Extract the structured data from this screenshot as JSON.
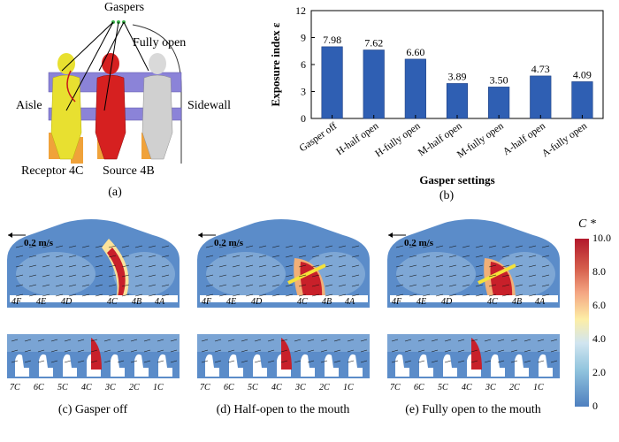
{
  "panel_a": {
    "labels": {
      "gaspers": "Gaspers",
      "fully_open": "Fully open",
      "aisle": "Aisle",
      "sidewall": "Sidewall",
      "receptor": "Receptor 4C",
      "source": "Source 4B"
    },
    "caption": "(a)"
  },
  "panel_b": {
    "caption": "(b)"
  },
  "chart_data": {
    "type": "bar",
    "title": "",
    "xlabel": "Gasper settings",
    "ylabel": "Exposure index ε",
    "ylim": [
      0,
      12
    ],
    "yticks": [
      0,
      3,
      6,
      9,
      12
    ],
    "categories": [
      "Gasper off",
      "H-half open",
      "H-fully open",
      "M-half open",
      "M-fully open",
      "A-half open",
      "A-fully open"
    ],
    "values": [
      7.98,
      7.62,
      6.6,
      3.89,
      3.5,
      4.73,
      4.09
    ],
    "value_labels": [
      "7.98",
      "7.62",
      "6.60",
      "3.89",
      "3.50",
      "4.73",
      "4.09"
    ],
    "bar_color": "#2f5fb3"
  },
  "panels_cfd": [
    {
      "speed": "0.2 m/s",
      "caption": "(c) Gasper off"
    },
    {
      "speed": "0.2 m/s",
      "caption": "(d) Half-open to the mouth"
    },
    {
      "speed": "0.2 m/s",
      "caption": "(e) Fully open to the mouth"
    }
  ],
  "seat_labels_top": [
    "4F",
    "4E",
    "4D",
    "4C",
    "4B",
    "4A"
  ],
  "seat_labels_bottom": [
    "7C",
    "6C",
    "5C",
    "4C",
    "3C",
    "2C",
    "1C"
  ],
  "colorbar": {
    "title": "C *",
    "ticks": [
      "10.0",
      "8.0",
      "6.0",
      "4.0",
      "2.0",
      "0"
    ]
  }
}
